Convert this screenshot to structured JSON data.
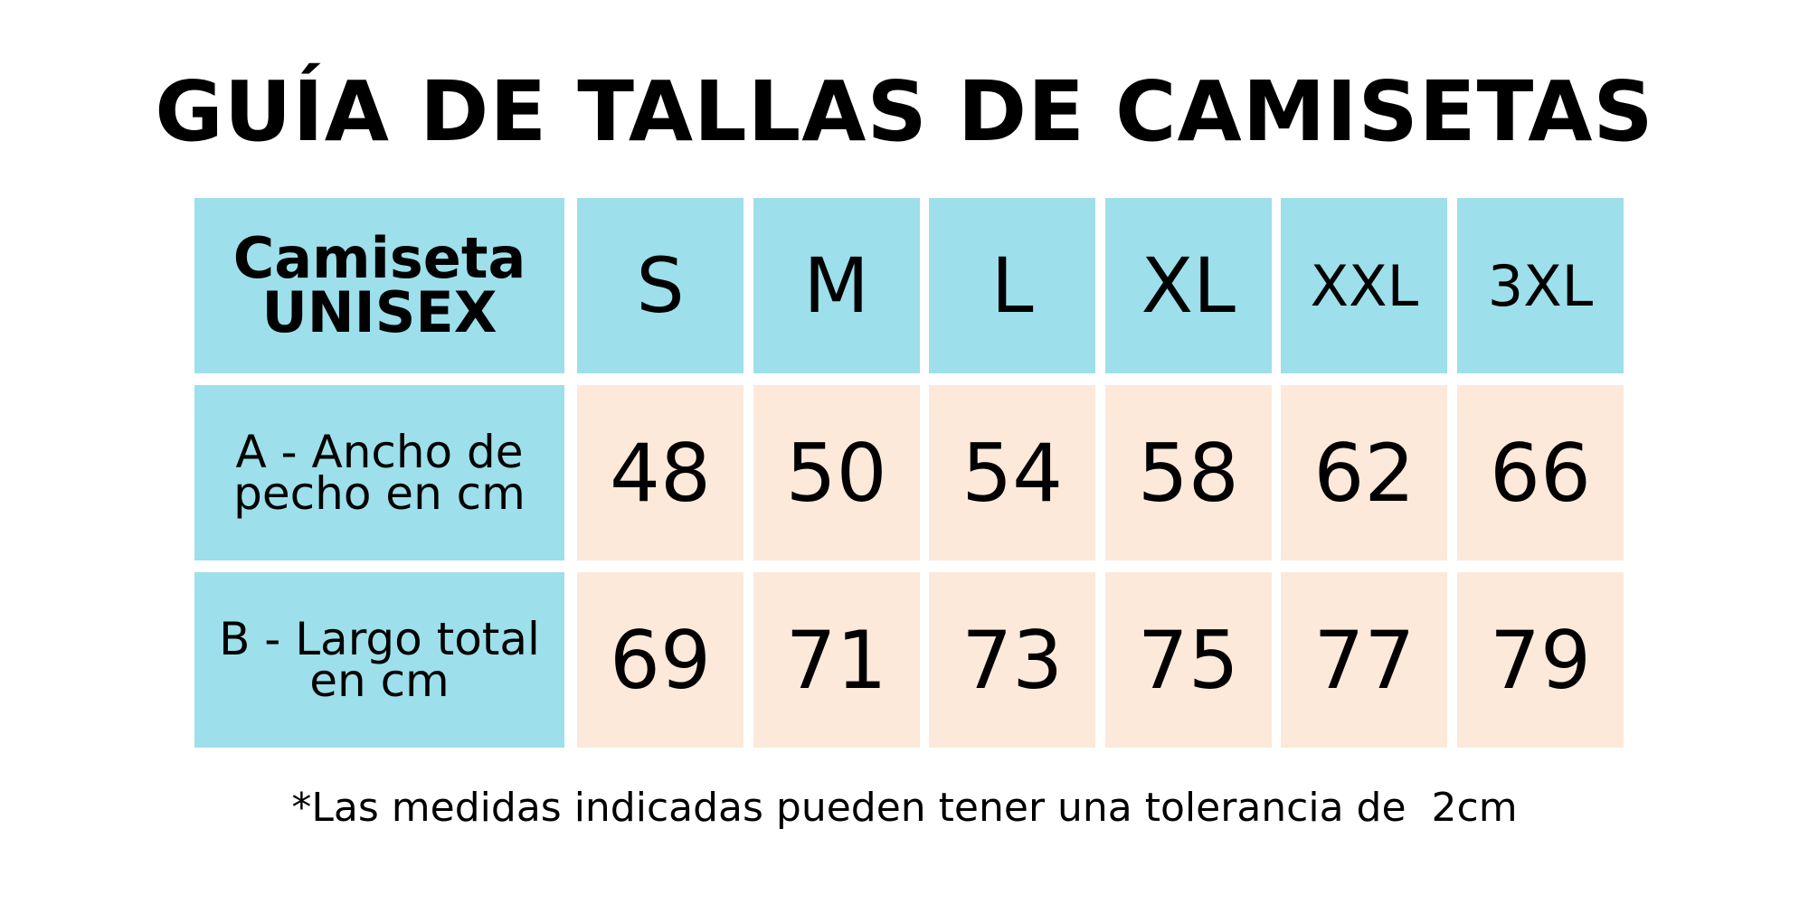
{
  "title": "GUÍA DE TALLAS DE CAMISETAS",
  "table": {
    "header": [
      "Camiseta UNISEX",
      "S",
      "M",
      "L",
      "XL",
      "XXL",
      "3XL"
    ],
    "rows": [
      [
        "A - Ancho de pecho en cm",
        48,
        50,
        54,
        58,
        62,
        66
      ],
      [
        "B - Largo total en cm",
        69,
        71,
        73,
        75,
        77,
        79
      ]
    ]
  },
  "footnote": "*Las medidas indicadas pueden tener una tolerancia de  2cm"
}
